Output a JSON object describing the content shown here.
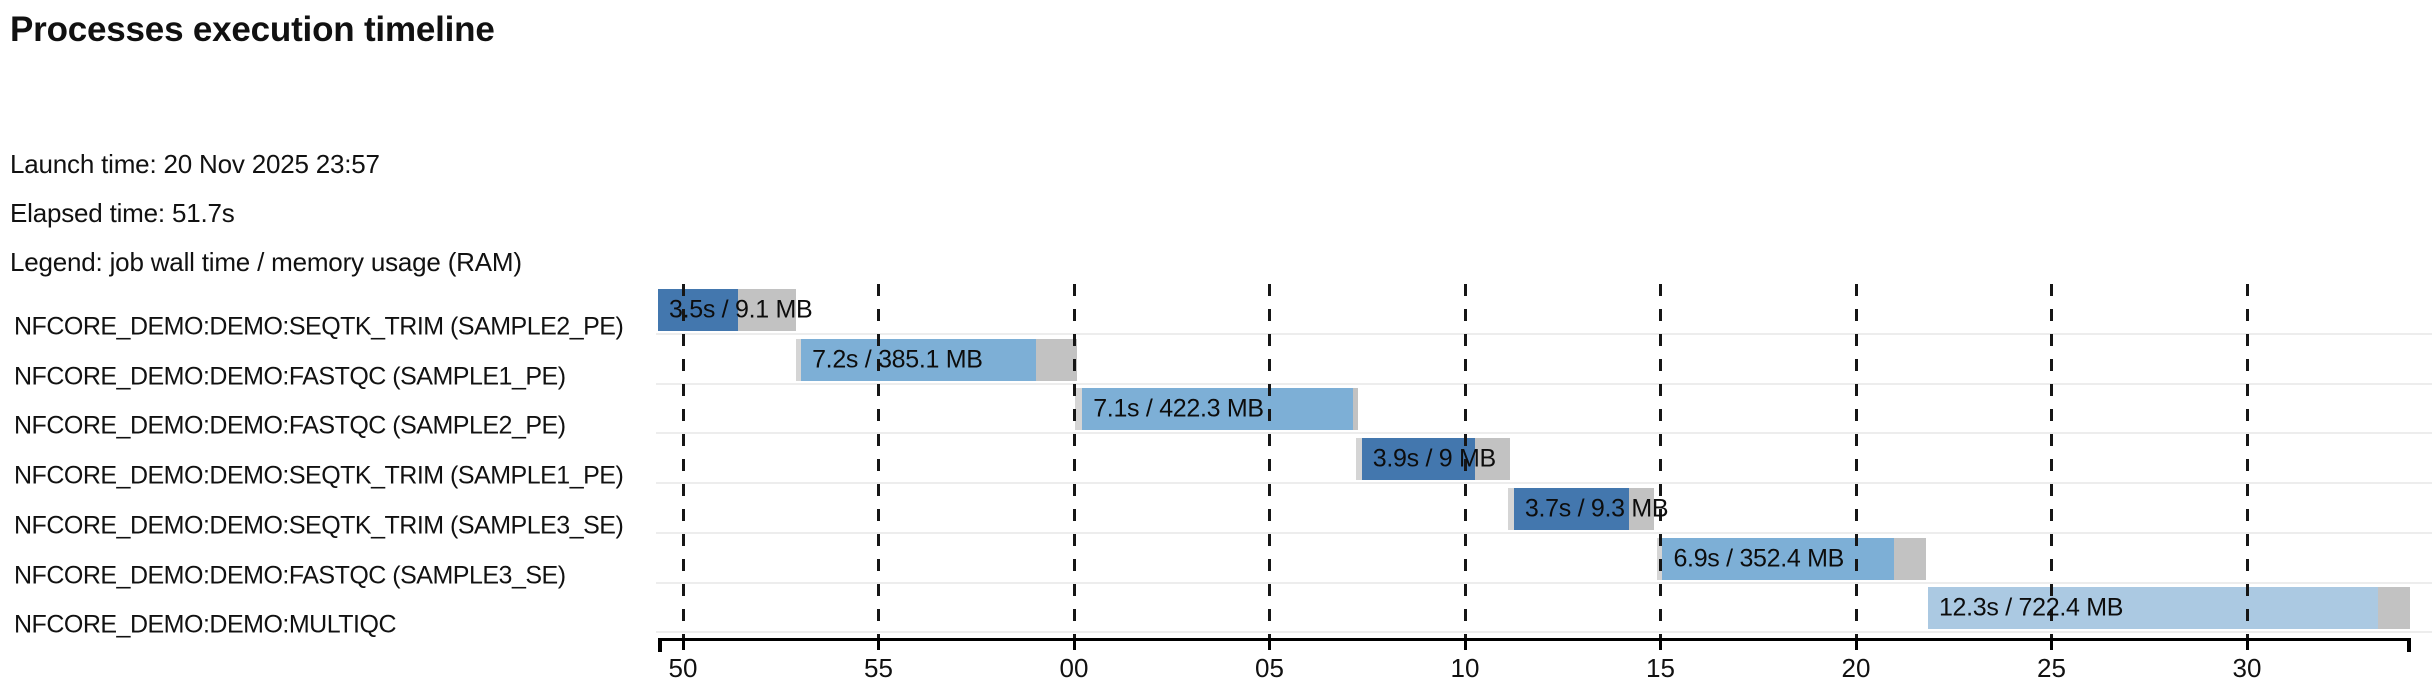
{
  "header": {
    "title": "Processes execution timeline",
    "launch_time": "Launch time: 20 Nov 2025 23:57",
    "elapsed_time": "Elapsed time: 51.7s",
    "legend": "Legend: job wall time / memory usage (RAM)"
  },
  "chart_data": {
    "type": "timeline_gantt",
    "time_unit": "seconds",
    "axis": {
      "tick_labels": [
        "50",
        "55",
        "00",
        "05",
        "10",
        "15",
        "20",
        "25",
        "30"
      ],
      "tick_interval_s": 5,
      "t_min": -0.64,
      "t_max": 44.2,
      "grid": "dashed-vertical"
    },
    "colors": {
      "run_dark": "#4377ae",
      "run_medium": "#7dafd6",
      "run_light": "#abc9e2",
      "tail": "#c2c2c2",
      "pending": "#d5d5d5"
    },
    "rows": [
      {
        "process": "NFCORE_DEMO:DEMO:SEQTK_TRIM (SAMPLE2_PE)",
        "bar_label": "3.5s / 9.1 MB",
        "wall_time_s": 3.5,
        "memory": "9.1 MB",
        "t_start": -0.64,
        "pending_s": 0,
        "run_s": 2.05,
        "tail_s": 1.49,
        "shade": "dark"
      },
      {
        "process": "NFCORE_DEMO:DEMO:FASTQC (SAMPLE1_PE)",
        "bar_label": "7.2s / 385.1 MB",
        "wall_time_s": 7.2,
        "memory": "385.1 MB",
        "t_start": 2.89,
        "pending_s": 0.13,
        "run_s": 6.01,
        "tail_s": 1.05,
        "shade": "medium"
      },
      {
        "process": "NFCORE_DEMO:DEMO:FASTQC (SAMPLE2_PE)",
        "bar_label": "7.1s / 422.3 MB",
        "wall_time_s": 7.1,
        "memory": "422.3 MB",
        "t_start": 10.03,
        "pending_s": 0.18,
        "run_s": 6.93,
        "tail_s": 0.13,
        "shade": "medium"
      },
      {
        "process": "NFCORE_DEMO:DEMO:SEQTK_TRIM (SAMPLE1_PE)",
        "bar_label": "3.9s / 9 MB",
        "wall_time_s": 3.9,
        "memory": "9 MB",
        "t_start": 17.21,
        "pending_s": 0.15,
        "run_s": 2.89,
        "tail_s": 0.9,
        "shade": "dark"
      },
      {
        "process": "NFCORE_DEMO:DEMO:SEQTK_TRIM (SAMPLE3_SE)",
        "bar_label": "3.7s / 9.3 MB",
        "wall_time_s": 3.7,
        "memory": "9.3 MB",
        "t_start": 21.1,
        "pending_s": 0.15,
        "run_s": 2.94,
        "tail_s": 0.64,
        "shade": "dark"
      },
      {
        "process": "NFCORE_DEMO:DEMO:FASTQC (SAMPLE3_SE)",
        "bar_label": "6.9s / 352.4 MB",
        "wall_time_s": 6.9,
        "memory": "352.4 MB",
        "t_start": 24.9,
        "pending_s": 0.15,
        "run_s": 5.91,
        "tail_s": 0.82,
        "shade": "medium"
      },
      {
        "process": "NFCORE_DEMO:DEMO:MULTIQC",
        "bar_label": "12.3s / 722.4 MB",
        "wall_time_s": 12.3,
        "memory": "722.4 MB",
        "t_start": 31.84,
        "pending_s": 0,
        "run_s": 11.51,
        "tail_s": 0.82,
        "shade": "light"
      }
    ]
  }
}
